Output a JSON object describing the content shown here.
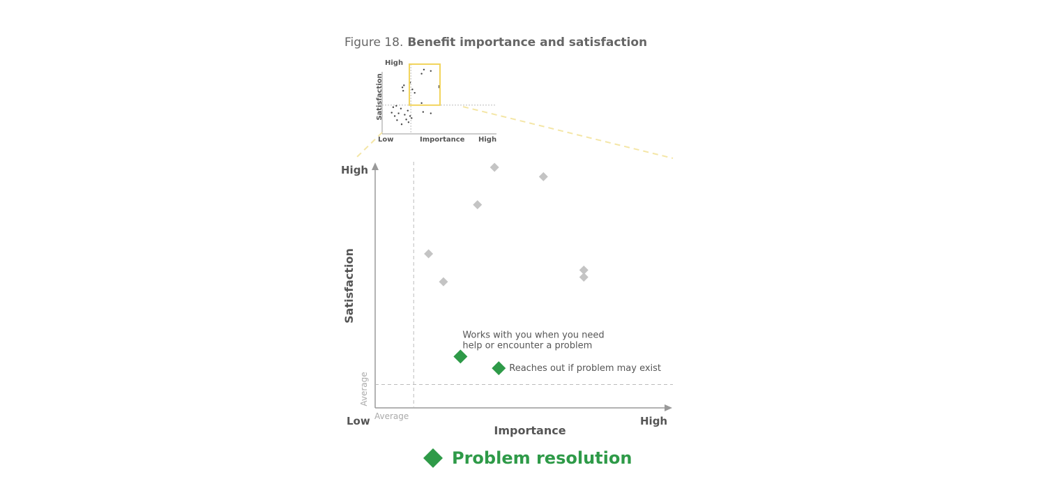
{
  "figure": {
    "label": "Figure 18.",
    "title": "Benefit importance and satisfaction"
  },
  "colors": {
    "highlight": "#2e9a48",
    "other_points": "#c4c4c4",
    "inset_frame": "#f2d45c",
    "axis": "#999999",
    "text": "#555555"
  },
  "inset_chart": {
    "type": "scatter",
    "ylabel": "Satisfaction",
    "xlabel": "Importance",
    "y_high_label": "High",
    "x_low_label": "Low",
    "x_high_label": "High",
    "xlim": [
      0,
      10
    ],
    "ylim": [
      0,
      10
    ],
    "average_x": 3.2,
    "average_y": 4.0,
    "zoom_region": {
      "x": [
        3.0,
        7.0
      ],
      "y": [
        4.0,
        10.0
      ]
    },
    "points": [
      {
        "x": 4.9,
        "y": 9.2
      },
      {
        "x": 5.8,
        "y": 9.0
      },
      {
        "x": 4.6,
        "y": 8.6
      },
      {
        "x": 6.9,
        "y": 6.8
      },
      {
        "x": 6.9,
        "y": 6.6
      },
      {
        "x": 3.1,
        "y": 7.3
      },
      {
        "x": 3.4,
        "y": 6.3
      },
      {
        "x": 3.7,
        "y": 5.8
      },
      {
        "x": 4.6,
        "y": 4.3
      },
      {
        "x": 4.8,
        "y": 3.0
      },
      {
        "x": 5.8,
        "y": 2.8
      },
      {
        "x": 2.1,
        "y": 6.6
      },
      {
        "x": 2.3,
        "y": 6.9
      },
      {
        "x": 2.2,
        "y": 6.1
      },
      {
        "x": 0.9,
        "y": 3.7
      },
      {
        "x": 1.3,
        "y": 3.9
      },
      {
        "x": 1.9,
        "y": 3.5
      },
      {
        "x": 2.4,
        "y": 2.6
      },
      {
        "x": 3.1,
        "y": 2.4
      },
      {
        "x": 1.6,
        "y": 2.8
      },
      {
        "x": 1.1,
        "y": 2.4
      },
      {
        "x": 2.6,
        "y": 1.9
      },
      {
        "x": 2.0,
        "y": 1.2
      },
      {
        "x": 2.9,
        "y": 1.5
      },
      {
        "x": 3.3,
        "y": 2.1
      },
      {
        "x": 0.7,
        "y": 2.9
      },
      {
        "x": 1.4,
        "y": 1.8
      },
      {
        "x": 2.8,
        "y": 3.2
      }
    ]
  },
  "chart_data": {
    "type": "scatter",
    "xlabel": "Importance",
    "ylabel": "Satisfaction",
    "x_low_label": "Low",
    "x_high_label": "High",
    "y_high_label": "High",
    "x_average_label": "Average",
    "y_average_label": "Average",
    "xlim": [
      0,
      10
    ],
    "ylim": [
      0,
      10
    ],
    "average_x": 0.5,
    "average_y": 0.7,
    "legend": "Problem resolution",
    "series": [
      {
        "highlight": false,
        "points": [
          {
            "x": 4.3,
            "y": 10.0
          },
          {
            "x": 6.6,
            "y": 9.6
          },
          {
            "x": 3.5,
            "y": 8.4
          },
          {
            "x": 1.2,
            "y": 6.3
          },
          {
            "x": 1.9,
            "y": 5.1
          },
          {
            "x": 8.5,
            "y": 5.6
          },
          {
            "x": 8.5,
            "y": 5.3
          }
        ]
      },
      {
        "name": "Problem resolution",
        "highlight": true,
        "points": [
          {
            "x": 2.7,
            "y": 1.9,
            "label": [
              "Works with you when you need",
              "help or encounter a problem"
            ]
          },
          {
            "x": 4.5,
            "y": 1.4,
            "label": [
              "Reaches out if problem may exist"
            ]
          }
        ]
      }
    ]
  }
}
